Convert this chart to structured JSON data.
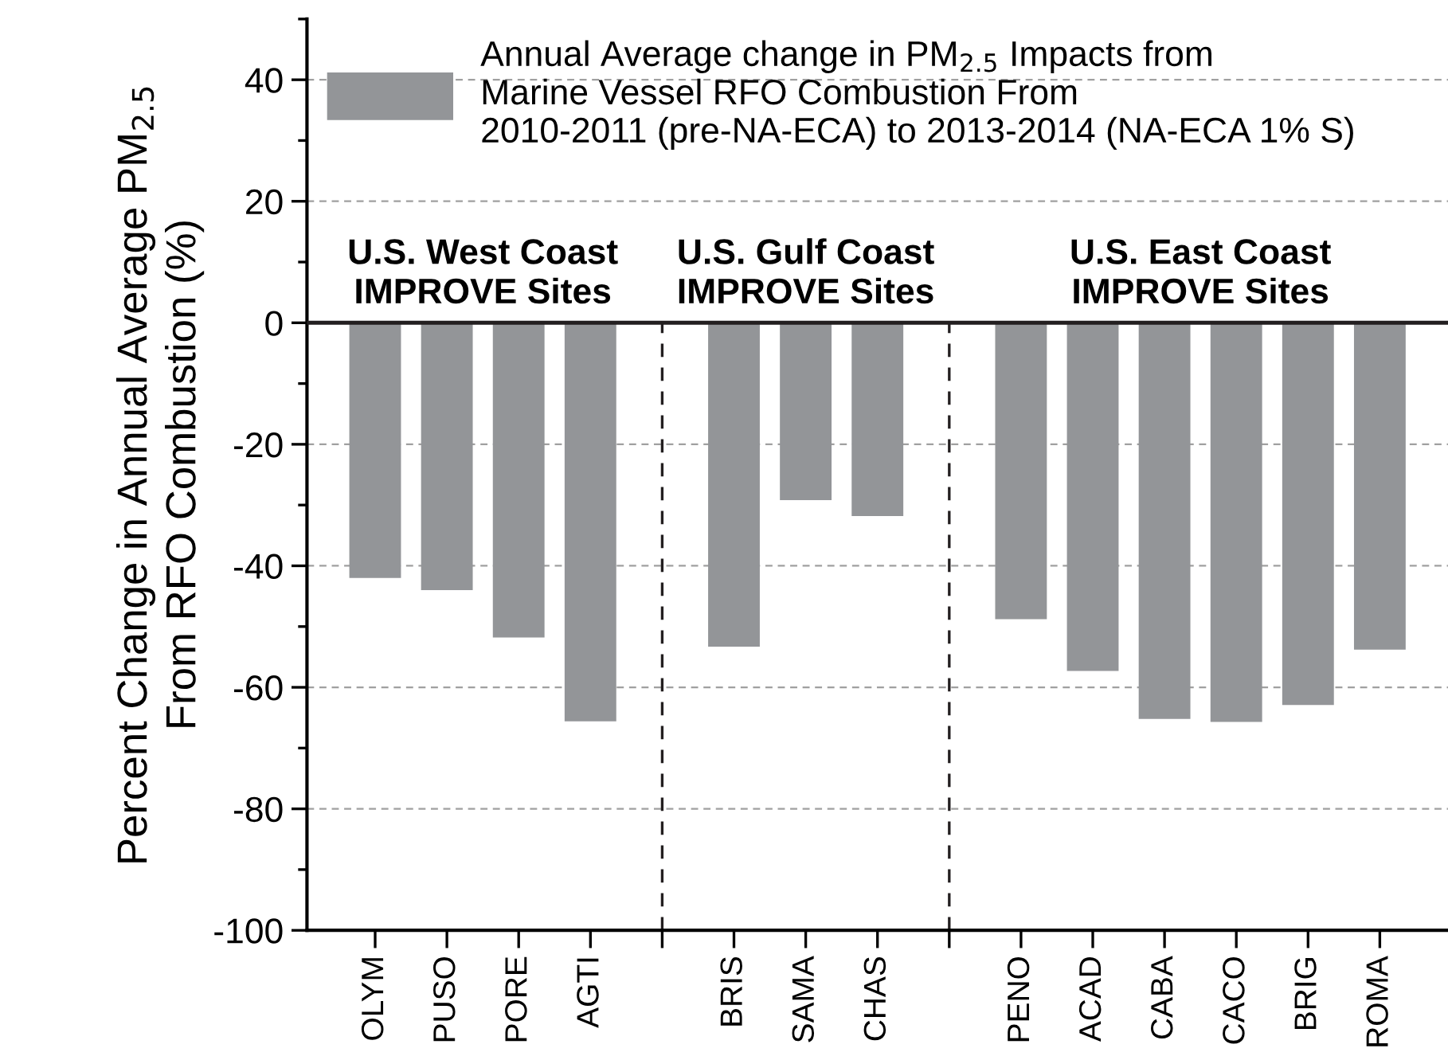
{
  "chart_data": {
    "type": "bar",
    "categories": [
      "OLYM",
      "PUSO",
      "PORE",
      "AGTI",
      null,
      "BRIS",
      "SAMA",
      "CHAS",
      null,
      "PENO",
      "ACAD",
      "CABA",
      "CACO",
      "BRIG",
      "ROMA"
    ],
    "series": [
      {
        "name": "Annual Average change in PM$_{2.5}$ Impacts from\nMarine Vessel RFO Combustion From\n2010-2011 (pre-NA-ECA) to 2013-2014 (NA-ECA 1% S)",
        "color": "#939598",
        "values": [
          -42.0,
          -44.0,
          -51.8,
          -65.6,
          null,
          -53.3,
          -29.2,
          -31.8,
          null,
          -48.8,
          -57.3,
          -65.2,
          -65.7,
          -62.9,
          -53.8
        ]
      }
    ],
    "ylabel": "Percent Change in Annual Average PM$_{2.5}$\nFrom RFO Combustion (%)",
    "ylim": [
      -100,
      50
    ],
    "yticks": [
      -100,
      -80,
      -60,
      -40,
      -20,
      0,
      20,
      40
    ],
    "annotations": [
      "U.S. West Coast\nIMPROVE Sites",
      "U.S. Gulf Coast\nIMPROVE Sites",
      "U.S. East Coast\nIMPROVE Sites"
    ],
    "ref_lines": [
      {
        "axis": "y",
        "value": 0,
        "color": "#231f20",
        "line_style": "solid"
      }
    ],
    "grid": "y",
    "legend": "top left"
  }
}
